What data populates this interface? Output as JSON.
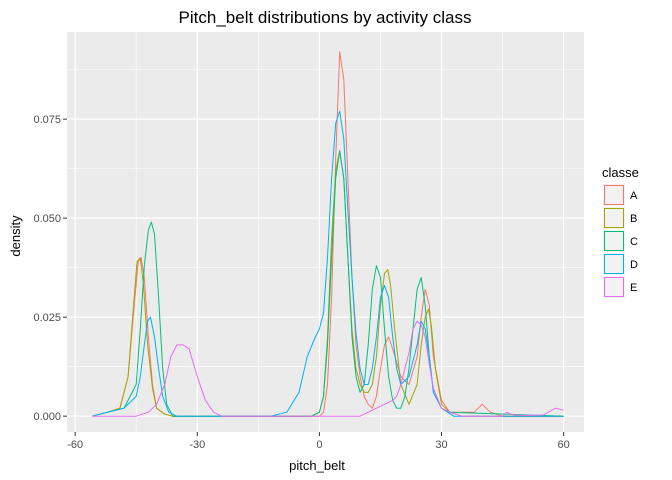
{
  "chart_data": {
    "type": "line",
    "title": "Pitch_belt distributions by activity class",
    "xlabel": "pitch_belt",
    "ylabel": "density",
    "xlim": [
      -62,
      65
    ],
    "ylim": [
      -0.004,
      0.097
    ],
    "xticks": [
      -60,
      -30,
      0,
      30,
      60
    ],
    "xtick_labels": [
      "-60",
      "-30",
      "0",
      "30",
      "60"
    ],
    "yticks": [
      0.0,
      0.025,
      0.05,
      0.075
    ],
    "ytick_labels": [
      "0.000",
      "0.025",
      "0.050",
      "0.075"
    ],
    "grid": true,
    "legend": {
      "title": "classe",
      "position": "right"
    },
    "series": [
      {
        "name": "A",
        "color": "#F8766D",
        "x": [
          -55.8,
          -52,
          -49,
          -47,
          -45.5,
          -44.5,
          -43.8,
          -43,
          -42,
          -41,
          -40,
          -38,
          -36,
          -30,
          -20,
          -10,
          0,
          1,
          2,
          3,
          4,
          5,
          6,
          7,
          8,
          9,
          10,
          11,
          12,
          13,
          14,
          15,
          16,
          17,
          18,
          20,
          22,
          24,
          25,
          26,
          27,
          28,
          30,
          32,
          35,
          38,
          40,
          42,
          45,
          60
        ],
        "y": [
          0.0,
          0.001,
          0.002,
          0.01,
          0.028,
          0.039,
          0.04,
          0.035,
          0.02,
          0.008,
          0.002,
          0.0005,
          0.0,
          0.0,
          0.0,
          0.0,
          0.0,
          0.001,
          0.008,
          0.03,
          0.065,
          0.092,
          0.085,
          0.06,
          0.035,
          0.018,
          0.01,
          0.005,
          0.003,
          0.002,
          0.005,
          0.012,
          0.018,
          0.02,
          0.017,
          0.01,
          0.008,
          0.015,
          0.025,
          0.032,
          0.028,
          0.015,
          0.004,
          0.001,
          0.001,
          0.001,
          0.003,
          0.001,
          0.0,
          0.0
        ]
      },
      {
        "name": "B",
        "color": "#A3A500",
        "x": [
          -55.8,
          -52,
          -49,
          -47,
          -45.5,
          -44.8,
          -44,
          -43.2,
          -42.2,
          -41,
          -40,
          -38,
          -36,
          -30,
          -20,
          -10,
          -2,
          0,
          1,
          2,
          3,
          4,
          5,
          6,
          7,
          8,
          9,
          10,
          11,
          12,
          13,
          14,
          15,
          16,
          16.8,
          17.5,
          18.5,
          20,
          22,
          24,
          25,
          26,
          26.8,
          27.5,
          28.5,
          30,
          32,
          35,
          60
        ],
        "y": [
          0.0,
          0.001,
          0.002,
          0.01,
          0.03,
          0.039,
          0.04,
          0.033,
          0.018,
          0.007,
          0.002,
          0.0005,
          0.0,
          0.0,
          0.0,
          0.0,
          0.0,
          0.001,
          0.005,
          0.02,
          0.045,
          0.062,
          0.067,
          0.06,
          0.04,
          0.022,
          0.012,
          0.008,
          0.006,
          0.006,
          0.008,
          0.015,
          0.028,
          0.036,
          0.037,
          0.033,
          0.022,
          0.008,
          0.003,
          0.008,
          0.018,
          0.025,
          0.027,
          0.023,
          0.012,
          0.003,
          0.001,
          0.0,
          0.0
        ]
      },
      {
        "name": "C",
        "color": "#00BF7D",
        "x": [
          -55.8,
          -52,
          -48,
          -45,
          -44,
          -43,
          -42,
          -41.3,
          -40.5,
          -39.5,
          -38.5,
          -37.5,
          -36,
          -30,
          -20,
          -10,
          -2,
          0,
          1,
          2,
          3,
          4,
          5,
          6,
          7,
          8,
          9,
          10,
          11,
          12,
          13,
          14,
          15,
          16,
          17,
          18,
          19,
          20,
          21,
          22,
          23,
          24,
          25,
          26,
          27,
          28,
          30,
          32,
          60
        ],
        "y": [
          0.0,
          0.001,
          0.002,
          0.008,
          0.022,
          0.038,
          0.047,
          0.049,
          0.046,
          0.03,
          0.012,
          0.003,
          0.0,
          0.0,
          0.0,
          0.0,
          0.0,
          0.001,
          0.005,
          0.018,
          0.04,
          0.06,
          0.067,
          0.06,
          0.04,
          0.02,
          0.01,
          0.006,
          0.008,
          0.018,
          0.032,
          0.038,
          0.035,
          0.022,
          0.01,
          0.004,
          0.002,
          0.002,
          0.005,
          0.012,
          0.022,
          0.032,
          0.035,
          0.028,
          0.015,
          0.006,
          0.002,
          0.001,
          0.0
        ]
      },
      {
        "name": "D",
        "color": "#00B0F6",
        "x": [
          -55.8,
          -52,
          -48,
          -45,
          -44,
          -43,
          -42.2,
          -41.5,
          -40.5,
          -39.5,
          -38.5,
          -37,
          -35,
          -30,
          -20,
          -12,
          -8,
          -5,
          -3,
          -1,
          0,
          1,
          2,
          3,
          4,
          5,
          6,
          7,
          8,
          9,
          10,
          11,
          12,
          13,
          14,
          15,
          16,
          17,
          18,
          19,
          20,
          22,
          24,
          25,
          26,
          27,
          28,
          30,
          33,
          60
        ],
        "y": [
          0.0,
          0.001,
          0.002,
          0.005,
          0.01,
          0.018,
          0.024,
          0.025,
          0.02,
          0.012,
          0.005,
          0.001,
          0.0,
          0.0,
          0.0,
          0.0,
          0.001,
          0.006,
          0.015,
          0.02,
          0.022,
          0.026,
          0.04,
          0.06,
          0.074,
          0.077,
          0.07,
          0.052,
          0.035,
          0.021,
          0.012,
          0.008,
          0.008,
          0.012,
          0.02,
          0.03,
          0.033,
          0.03,
          0.02,
          0.012,
          0.008,
          0.01,
          0.018,
          0.024,
          0.022,
          0.015,
          0.006,
          0.002,
          0.0,
          0.0
        ]
      },
      {
        "name": "E",
        "color": "#E76BF3",
        "x": [
          -55.8,
          -45,
          -42,
          -40,
          -38,
          -36.5,
          -35,
          -33.5,
          -32,
          -30,
          -28,
          -26,
          -24,
          -20,
          -10,
          0,
          10,
          12,
          14,
          16,
          18,
          19,
          20,
          22,
          23,
          24,
          25,
          26,
          27,
          28,
          30,
          32,
          35,
          40,
          45,
          46,
          47,
          48,
          50,
          55,
          58,
          60
        ],
        "y": [
          0.0,
          0.0,
          0.001,
          0.003,
          0.008,
          0.015,
          0.018,
          0.018,
          0.017,
          0.01,
          0.004,
          0.001,
          0.0,
          0.0,
          0.0,
          0.0,
          0.0,
          0.001,
          0.002,
          0.003,
          0.004,
          0.005,
          0.008,
          0.016,
          0.022,
          0.024,
          0.023,
          0.02,
          0.013,
          0.007,
          0.002,
          0.001,
          0.0,
          0.0,
          0.0,
          0.001,
          0.0005,
          0.0003,
          0.0002,
          0.0003,
          0.002,
          0.0015
        ]
      }
    ]
  }
}
